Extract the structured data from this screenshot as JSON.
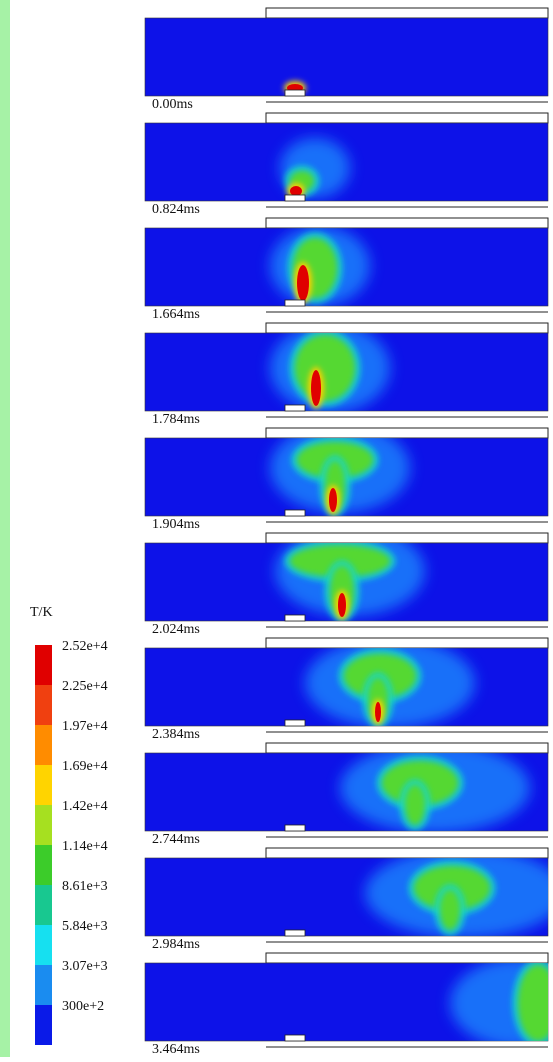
{
  "frames": [
    {
      "time": "0.00ms"
    },
    {
      "time": "0.824ms"
    },
    {
      "time": "1.664ms"
    },
    {
      "time": "1.784ms"
    },
    {
      "time": "1.904ms"
    },
    {
      "time": "2.024ms"
    },
    {
      "time": "2.384ms"
    },
    {
      "time": "2.744ms"
    },
    {
      "time": "2.984ms"
    },
    {
      "time": "3.464ms"
    }
  ],
  "colorbar": {
    "title": "T/K",
    "labels": [
      "2.52e+4",
      "2.25e+4",
      "1.97e+4",
      "1.69e+4",
      "1.42e+4",
      "1.14e+4",
      "8.61e+3",
      "5.84e+3",
      "3.07e+3",
      "300e+2"
    ]
  }
}
